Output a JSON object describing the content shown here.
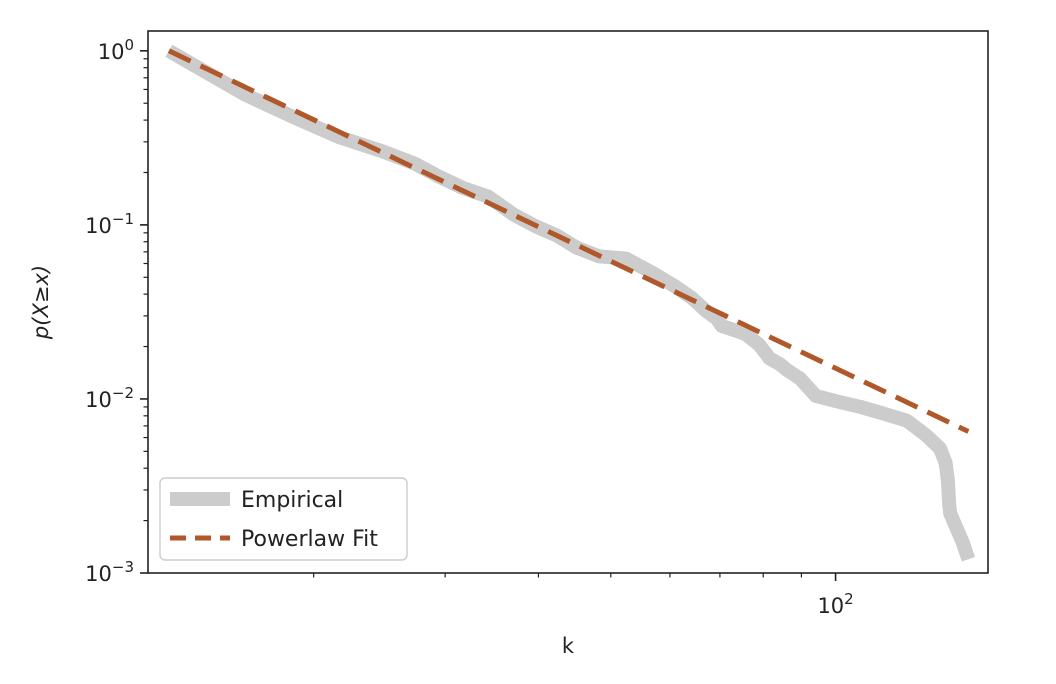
{
  "chart_data": {
    "type": "line",
    "xscale": "log",
    "yscale": "log",
    "xlabel": "k",
    "ylabel": "p(X≥x)",
    "xlim": [
      12,
      160
    ],
    "ylim": [
      0.001,
      1.3
    ],
    "x_major_ticks": [
      {
        "value": 100,
        "base": "10",
        "exp": "2"
      }
    ],
    "y_major_ticks": [
      {
        "value": 1,
        "base": "10",
        "exp": "0"
      },
      {
        "value": 0.1,
        "base": "10",
        "exp": "−1"
      },
      {
        "value": 0.01,
        "base": "10",
        "exp": "−2"
      },
      {
        "value": 0.001,
        "base": "10",
        "exp": "−3"
      }
    ],
    "grid": false,
    "legend_position": "lower-left",
    "series": [
      {
        "name": "Empirical",
        "color": "#cccccc",
        "style": "solid",
        "x": [
          12.8,
          14.3,
          16.2,
          18.7,
          21.6,
          24.7,
          27.3,
          29.4,
          31.7,
          34.3,
          37.0,
          39.7,
          42.3,
          45.0,
          48.2,
          52.4,
          56.9,
          61.1,
          64.2,
          67.1,
          69.3,
          70.4,
          72.3,
          75.7,
          79.0,
          81.6,
          84.3,
          86.0,
          89.6,
          94.1,
          101.2,
          108.0,
          115.2,
          124.6,
          132.1,
          138.0,
          140.4,
          141.4,
          141.9,
          142.4,
          148.0,
          150.6
        ],
        "y": [
          1.0,
          0.76,
          0.56,
          0.42,
          0.32,
          0.265,
          0.225,
          0.19,
          0.163,
          0.145,
          0.115,
          0.098,
          0.087,
          0.074,
          0.066,
          0.064,
          0.053,
          0.044,
          0.038,
          0.032,
          0.029,
          0.0262,
          0.0253,
          0.0236,
          0.0205,
          0.0171,
          0.0158,
          0.0147,
          0.0131,
          0.0104,
          0.0096,
          0.009,
          0.0083,
          0.0075,
          0.0062,
          0.0052,
          0.0043,
          0.0034,
          0.0025,
          0.0022,
          0.0015,
          0.0012
        ]
      },
      {
        "name": "Powerlaw Fit",
        "color": "#b0582a",
        "style": "dashed",
        "x": [
          12.8,
          150.6
        ],
        "y": [
          1.0,
          0.0065
        ]
      }
    ]
  }
}
